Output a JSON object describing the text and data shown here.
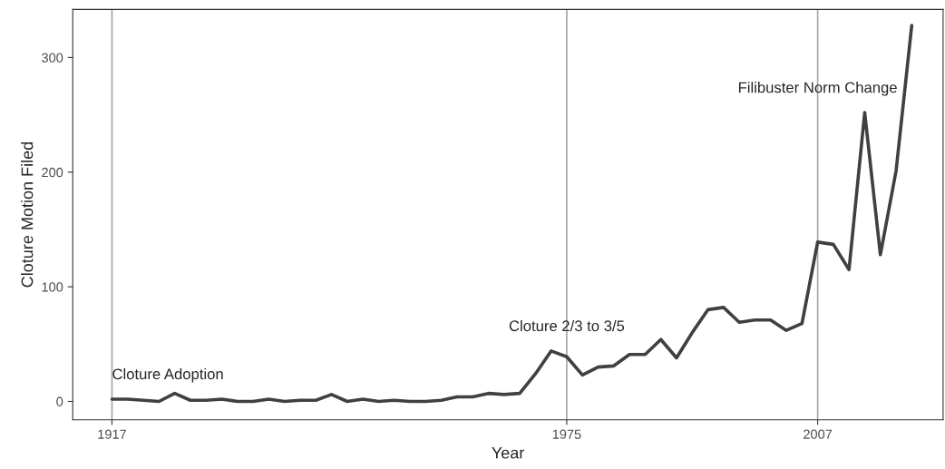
{
  "chart_data": {
    "type": "line",
    "xlabel": "Year",
    "ylabel": "Cloture Motion Filed",
    "x": [
      1917,
      1919,
      1921,
      1923,
      1925,
      1927,
      1929,
      1931,
      1933,
      1935,
      1937,
      1939,
      1941,
      1943,
      1945,
      1947,
      1949,
      1951,
      1953,
      1955,
      1957,
      1959,
      1961,
      1963,
      1965,
      1967,
      1969,
      1971,
      1973,
      1975,
      1977,
      1979,
      1981,
      1983,
      1985,
      1987,
      1989,
      1991,
      1993,
      1995,
      1997,
      1999,
      2001,
      2003,
      2005,
      2007,
      2009,
      2011,
      2013,
      2015,
      2017,
      2019
    ],
    "series": [
      {
        "color": "#404040",
        "values": [
          2,
          2,
          1,
          0,
          7,
          1,
          1,
          2,
          0,
          0,
          2,
          0,
          1,
          1,
          6,
          0,
          2,
          0,
          1,
          0,
          0,
          1,
          4,
          4,
          7,
          6,
          7,
          24,
          44,
          39,
          23,
          30,
          31,
          41,
          41,
          54,
          38,
          60,
          80,
          82,
          69,
          71,
          71,
          62,
          68,
          139,
          137,
          115,
          252,
          128,
          201,
          328
        ]
      }
    ],
    "xlim": [
      1912,
      2023
    ],
    "ylim": [
      -16,
      342
    ],
    "xticks": [
      1917,
      1975,
      2007
    ],
    "yticks": [
      0,
      100,
      200,
      300
    ],
    "ref_lines": [
      {
        "axis": "x",
        "value": 1917,
        "color": "#a6a6a6",
        "label": "Cloture Adoption"
      },
      {
        "axis": "x",
        "value": 1975,
        "color": "#a6a6a6",
        "label": "Cloture 2/3 to 3/5"
      },
      {
        "axis": "x",
        "value": 2007,
        "color": "#a6a6a6",
        "label": "Filibuster Norm Change"
      }
    ],
    "grid": false,
    "marker": "none",
    "line_style": "solid"
  }
}
